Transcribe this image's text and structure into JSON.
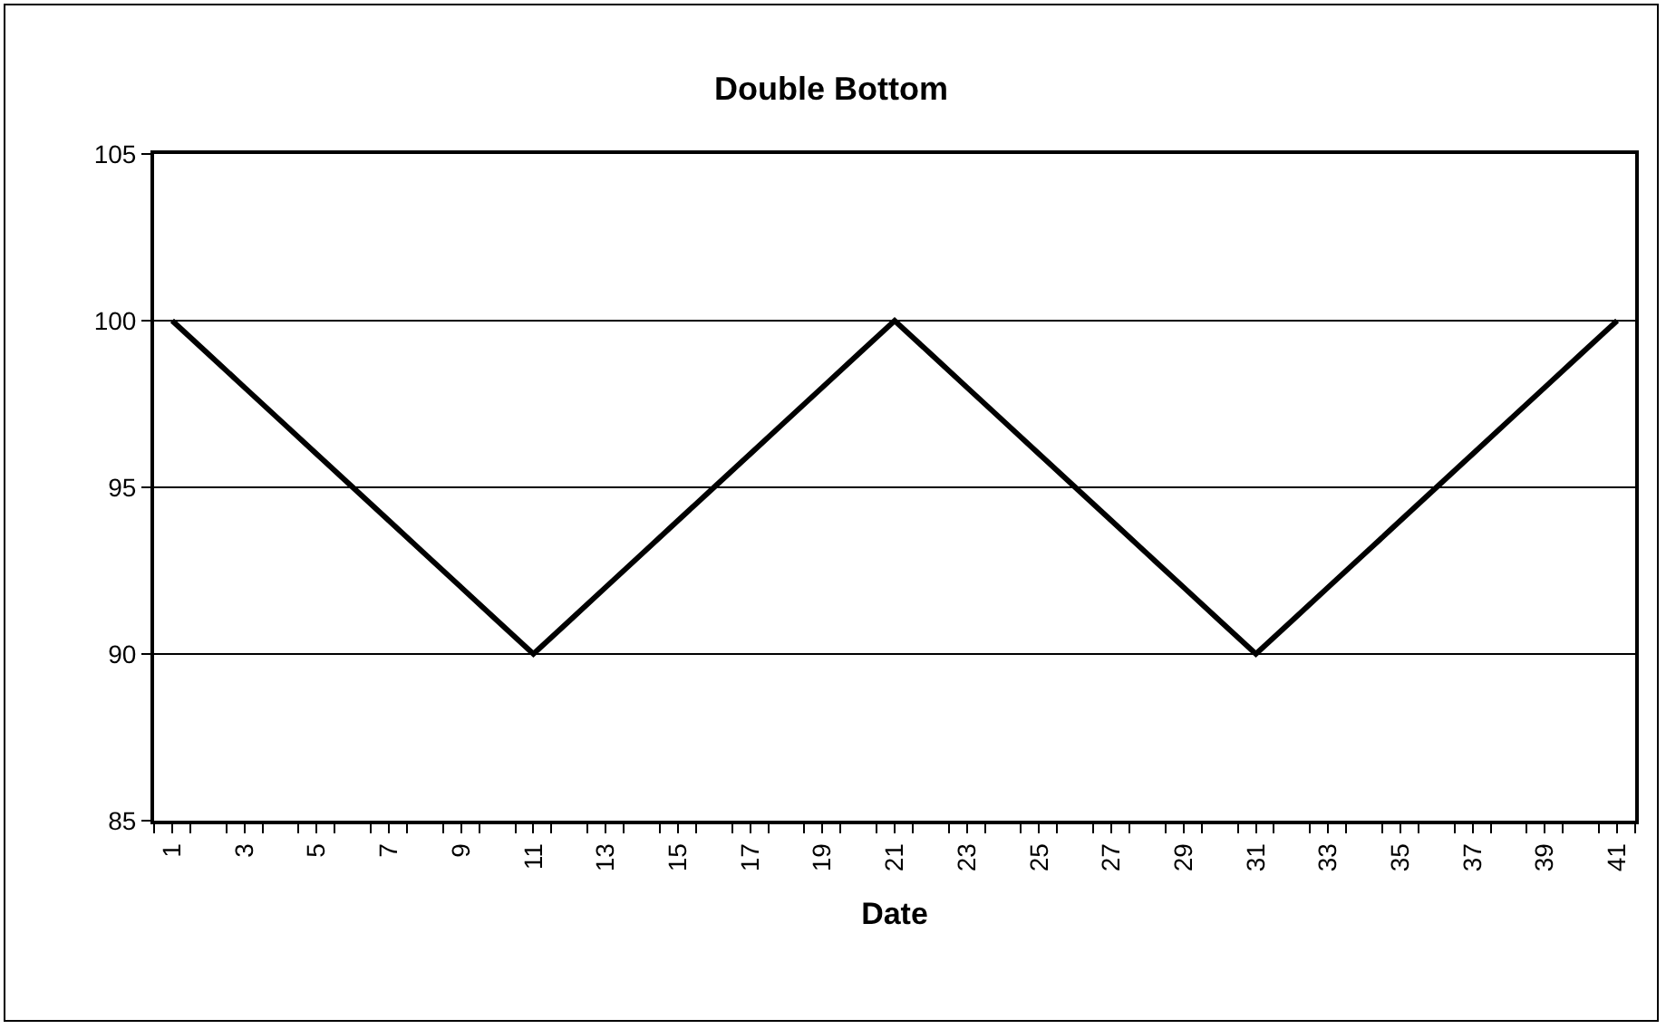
{
  "chart_data": {
    "type": "line",
    "title": "Double Bottom",
    "xlabel": "Date",
    "categories": [
      "1",
      null,
      "3",
      null,
      "5",
      null,
      "7",
      null,
      "9",
      null,
      "11",
      null,
      "13",
      null,
      "15",
      null,
      "17",
      null,
      "19",
      null,
      "21",
      null,
      "23",
      null,
      "25",
      null,
      "27",
      null,
      "29",
      null,
      "31",
      null,
      "33",
      null,
      "35",
      null,
      "37",
      null,
      "39",
      null,
      "41"
    ],
    "series": [
      {
        "color": "#000000",
        "values": [
          100,
          99,
          98,
          97,
          96,
          95,
          94,
          93,
          92,
          91,
          90,
          91,
          92,
          93,
          94,
          95,
          96,
          97,
          98,
          99,
          100,
          99,
          98,
          97,
          96,
          95,
          94,
          93,
          92,
          91,
          90,
          91,
          92,
          93,
          94,
          95,
          96,
          97,
          98,
          99,
          100
        ]
      }
    ],
    "ylim": [
      85,
      105
    ],
    "yticks": [
      85,
      90,
      95,
      100,
      105
    ],
    "grid": "y",
    "marker": "none",
    "line_style": "solid"
  }
}
